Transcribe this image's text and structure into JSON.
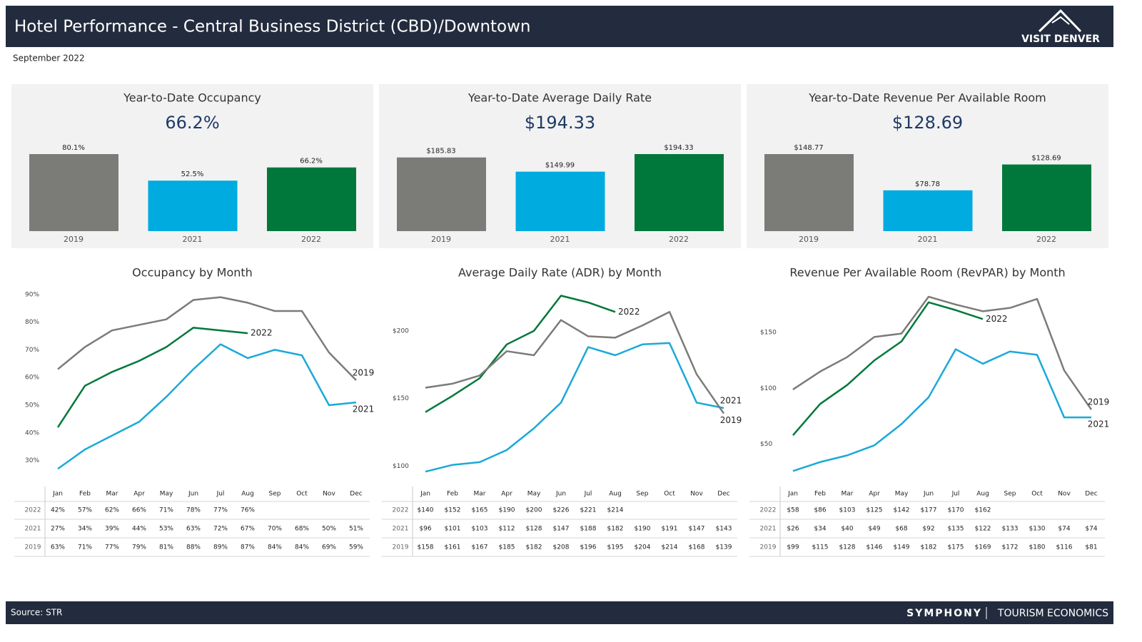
{
  "header": {
    "title": "Hotel Performance - Central Business District (CBD)/Downtown",
    "logo": "VISIT DENVER",
    "subtitle": "September 2022"
  },
  "footer": {
    "source": "Source: STR",
    "brand": "SYMPHONY",
    "brand_sub": "TOURISM ECONOMICS"
  },
  "chart_data": [
    {
      "type": "bar",
      "title": "Year-to-Date Occupancy",
      "subtitle": "66.2%",
      "categories": [
        "2019",
        "2021",
        "2022"
      ],
      "values": [
        80.1,
        52.5,
        66.2
      ],
      "value_labels": [
        "80.1%",
        "52.5%",
        "66.2%"
      ],
      "colors": [
        "#7b7b77",
        "#00abe0",
        "#00783c"
      ]
    },
    {
      "type": "bar",
      "title": "Year-to-Date Average Daily Rate",
      "subtitle": "$194.33",
      "categories": [
        "2019",
        "2021",
        "2022"
      ],
      "values": [
        185.83,
        149.99,
        194.33
      ],
      "value_labels": [
        "$185.83",
        "$149.99",
        "$194.33"
      ],
      "colors": [
        "#7b7b77",
        "#00abe0",
        "#00783c"
      ]
    },
    {
      "type": "bar",
      "title": "Year-to-Date Revenue Per Available Room",
      "subtitle": "$128.69",
      "categories": [
        "2019",
        "2021",
        "2022"
      ],
      "values": [
        148.77,
        78.78,
        128.69
      ],
      "value_labels": [
        "$148.77",
        "$78.78",
        "$128.69"
      ],
      "colors": [
        "#7b7b77",
        "#00abe0",
        "#00783c"
      ]
    },
    {
      "type": "line",
      "title": "Occupancy by Month",
      "categories": [
        "Jan",
        "Feb",
        "Mar",
        "Apr",
        "May",
        "Jun",
        "Jul",
        "Aug",
        "Sep",
        "Oct",
        "Nov",
        "Dec"
      ],
      "ylim": [
        25,
        92
      ],
      "yticks": [
        {
          "value": 30,
          "label": "30%"
        },
        {
          "value": 40,
          "label": "40%"
        },
        {
          "value": 50,
          "label": "50%"
        },
        {
          "value": 60,
          "label": "60%"
        },
        {
          "value": 70,
          "label": "70%"
        },
        {
          "value": 80,
          "label": "80%"
        },
        {
          "value": 90,
          "label": "90%"
        }
      ],
      "series": [
        {
          "name": "2022",
          "color": "#00783c",
          "values": [
            42,
            57,
            62,
            66,
            71,
            78,
            77,
            76,
            null,
            null,
            null,
            null
          ],
          "value_labels": [
            "42%",
            "57%",
            "62%",
            "66%",
            "71%",
            "78%",
            "77%",
            "76%",
            null,
            null,
            null,
            null
          ]
        },
        {
          "name": "2021",
          "color": "#1aa9d8",
          "values": [
            27,
            34,
            39,
            44,
            53,
            63,
            72,
            67,
            70,
            68,
            50,
            51
          ],
          "value_labels": [
            "27%",
            "34%",
            "39%",
            "44%",
            "53%",
            "63%",
            "72%",
            "67%",
            "70%",
            "68%",
            "50%",
            "51%"
          ]
        },
        {
          "name": "2019",
          "color": "#7b7b77",
          "values": [
            63,
            71,
            77,
            79,
            81,
            88,
            89,
            87,
            84,
            84,
            69,
            59
          ],
          "value_labels": [
            "63%",
            "71%",
            "77%",
            "79%",
            "81%",
            "88%",
            "89%",
            "87%",
            "84%",
            "84%",
            "69%",
            "59%"
          ]
        }
      ]
    },
    {
      "type": "line",
      "title": "Average Daily Rate (ADR) by Month",
      "categories": [
        "Jan",
        "Feb",
        "Mar",
        "Apr",
        "May",
        "Jun",
        "Jul",
        "Aug",
        "Sep",
        "Oct",
        "Nov",
        "Dec"
      ],
      "ylim": [
        94,
        231
      ],
      "yticks": [
        {
          "value": 100,
          "label": "$100"
        },
        {
          "value": 150,
          "label": "$150"
        },
        {
          "value": 200,
          "label": "$200"
        }
      ],
      "series": [
        {
          "name": "2022",
          "color": "#00783c",
          "values": [
            140,
            152,
            165,
            190,
            200,
            226,
            221,
            214,
            null,
            null,
            null,
            null
          ],
          "value_labels": [
            "$140",
            "$152",
            "$165",
            "$190",
            "$200",
            "$226",
            "$221",
            "$214",
            null,
            null,
            null,
            null
          ]
        },
        {
          "name": "2021",
          "color": "#1aa9d8",
          "values": [
            96,
            101,
            103,
            112,
            128,
            147,
            188,
            182,
            190,
            191,
            147,
            143
          ],
          "value_labels": [
            "$96",
            "$101",
            "$103",
            "$112",
            "$128",
            "$147",
            "$188",
            "$182",
            "$190",
            "$191",
            "$147",
            "$143"
          ]
        },
        {
          "name": "2019",
          "color": "#7b7b77",
          "values": [
            158,
            161,
            167,
            185,
            182,
            208,
            196,
            195,
            204,
            214,
            168,
            139
          ],
          "value_labels": [
            "$158",
            "$161",
            "$167",
            "$185",
            "$182",
            "$208",
            "$196",
            "$195",
            "$204",
            "$214",
            "$168",
            "$139"
          ]
        }
      ]
    },
    {
      "type": "line",
      "title": "Revenue Per Available Room (RevPAR) by Month",
      "categories": [
        "Jan",
        "Feb",
        "Mar",
        "Apr",
        "May",
        "Jun",
        "Jul",
        "Aug",
        "Sep",
        "Oct",
        "Nov",
        "Dec"
      ],
      "ylim": [
        23,
        189
      ],
      "yticks": [
        {
          "value": 50,
          "label": "$50"
        },
        {
          "value": 100,
          "label": "$100"
        },
        {
          "value": 150,
          "label": "$150"
        }
      ],
      "series": [
        {
          "name": "2022",
          "color": "#00783c",
          "values": [
            58,
            86,
            103,
            125,
            142,
            177,
            170,
            162,
            null,
            null,
            null,
            null
          ],
          "value_labels": [
            "$58",
            "$86",
            "$103",
            "$125",
            "$142",
            "$177",
            "$170",
            "$162",
            null,
            null,
            null,
            null
          ]
        },
        {
          "name": "2021",
          "color": "#1aa9d8",
          "values": [
            26,
            34,
            40,
            49,
            68,
            92,
            135,
            122,
            133,
            130,
            74,
            74
          ],
          "value_labels": [
            "$26",
            "$34",
            "$40",
            "$49",
            "$68",
            "$92",
            "$135",
            "$122",
            "$133",
            "$130",
            "$74",
            "$74"
          ]
        },
        {
          "name": "2019",
          "color": "#7b7b77",
          "values": [
            99,
            115,
            128,
            146,
            149,
            182,
            175,
            169,
            172,
            180,
            116,
            81
          ],
          "value_labels": [
            "$99",
            "$115",
            "$128",
            "$146",
            "$149",
            "$182",
            "$175",
            "$169",
            "$172",
            "$180",
            "$116",
            "$81"
          ]
        }
      ]
    }
  ]
}
